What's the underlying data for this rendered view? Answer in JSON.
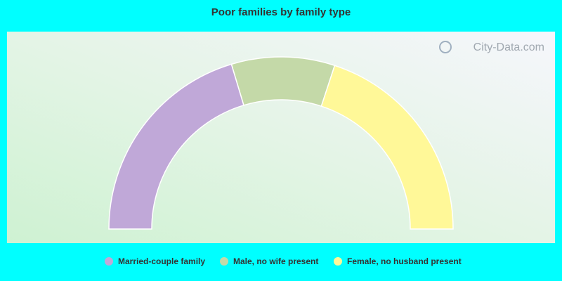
{
  "chart_data": {
    "type": "half-donut",
    "title": "Poor families by family type",
    "watermark": "City-Data.com",
    "categories": [
      "Married-couple family",
      "Male, no wife present",
      "Female, no husband present"
    ],
    "values": [
      40.7,
      19.4,
      39.9
    ],
    "colors": [
      "#c0a8d8",
      "#c4d9a8",
      "#fff898"
    ]
  }
}
